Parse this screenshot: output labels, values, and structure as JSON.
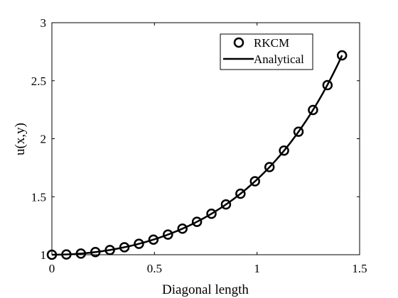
{
  "chart_data": {
    "type": "line",
    "title": "",
    "xlabel": "Diagonal length",
    "ylabel": "u(x,y)",
    "xlim": [
      0,
      1.5
    ],
    "ylim": [
      1,
      3
    ],
    "xticks": [
      0,
      0.5,
      1,
      1.5
    ],
    "xtick_labels": [
      "0",
      "0.5",
      "1",
      "1.5"
    ],
    "yticks": [
      1,
      1.5,
      2,
      2.5,
      3
    ],
    "ytick_labels": [
      "1",
      "1.5",
      "2",
      "2.5",
      "3"
    ],
    "grid": false,
    "legend_position": "top-right",
    "series": [
      {
        "name": "RKCM",
        "style": "markers",
        "marker": "circle-open",
        "color": "#000000",
        "x": [
          0,
          0.0707,
          0.1414,
          0.2121,
          0.2828,
          0.3536,
          0.4243,
          0.495,
          0.5657,
          0.6364,
          0.7071,
          0.7778,
          0.8485,
          0.9192,
          0.9899,
          1.0607,
          1.1314,
          1.2021,
          1.2728,
          1.3435,
          1.4142
        ],
        "y": [
          1.0,
          1.0025,
          1.01,
          1.0227,
          1.0408,
          1.0645,
          1.0942,
          1.1303,
          1.1735,
          1.2245,
          1.284,
          1.3532,
          1.4333,
          1.5259,
          1.6327,
          1.7557,
          1.8974,
          2.0606,
          2.2479,
          2.4618,
          2.7183
        ]
      },
      {
        "name": "Analytical",
        "style": "line",
        "color": "#000000",
        "function": "exp(0.5*s^2)"
      }
    ]
  }
}
